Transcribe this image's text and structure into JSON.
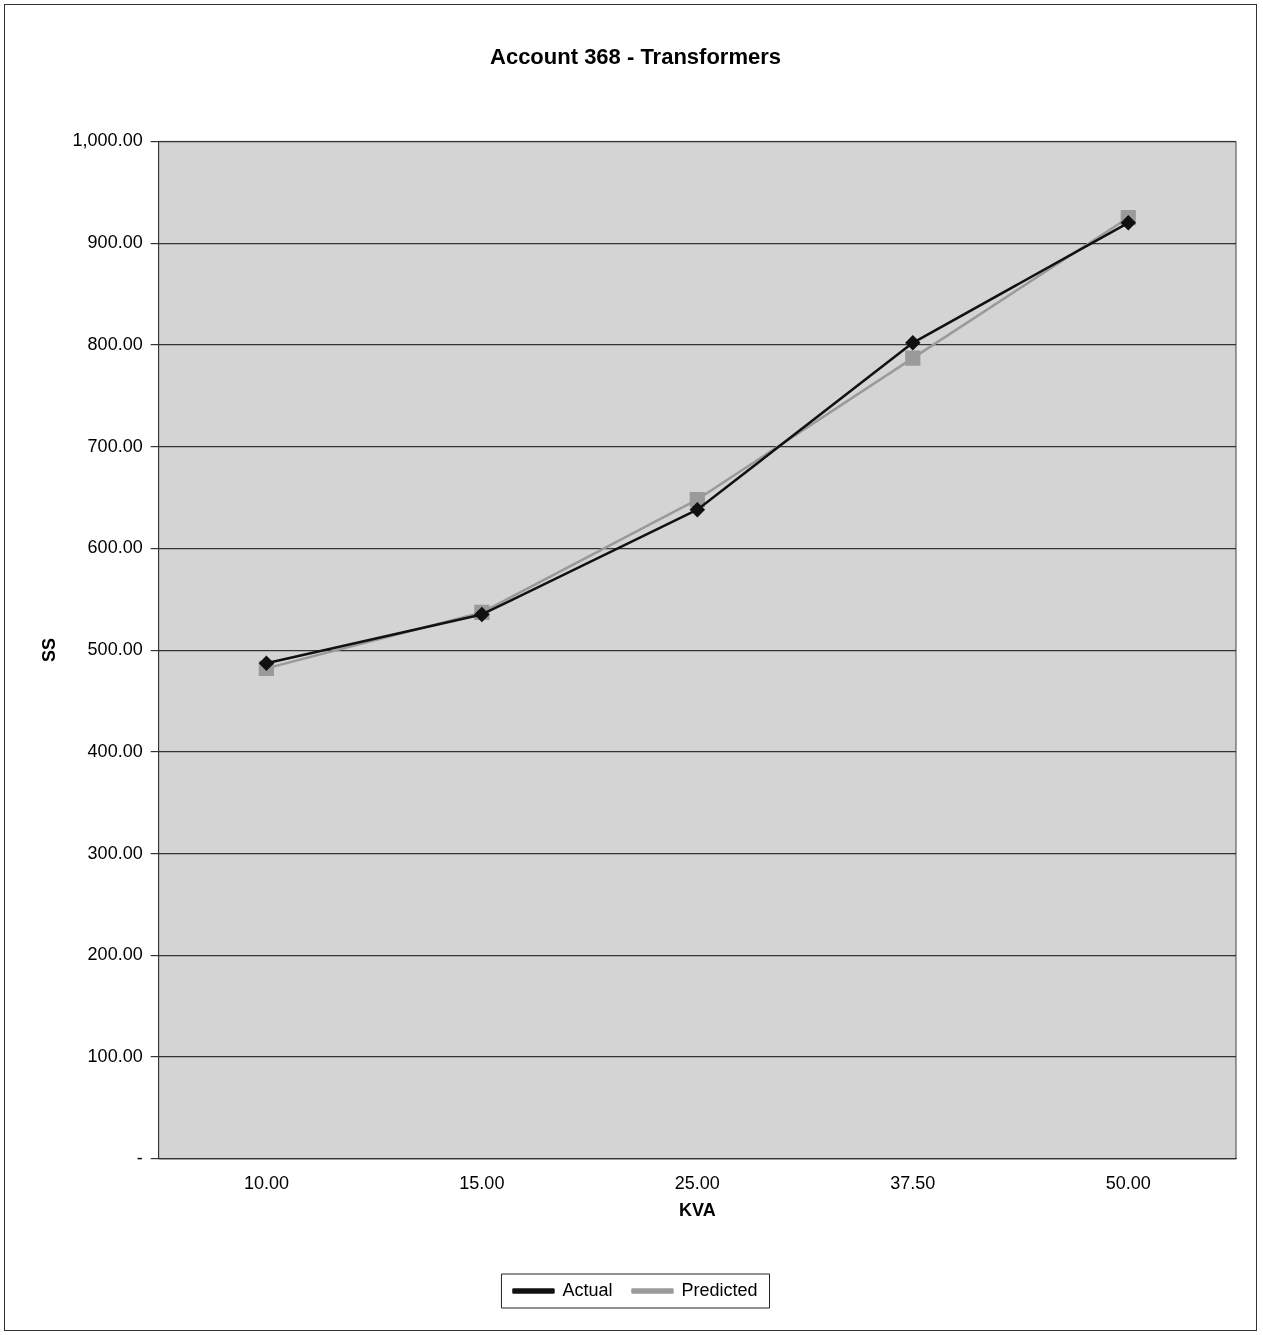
{
  "chart_data": {
    "type": "line",
    "title": "Account 368 - Transformers",
    "xlabel": "KVA",
    "ylabel": "SS",
    "categories": [
      "10.00",
      "15.00",
      "25.00",
      "37.50",
      "50.00"
    ],
    "series": [
      {
        "name": "Actual",
        "color": "#111111",
        "marker": "diamond",
        "values": [
          487,
          535,
          638,
          802,
          920
        ]
      },
      {
        "name": "Predicted",
        "color": "#9a9a9a",
        "marker": "square",
        "values": [
          482,
          537,
          648,
          787,
          925
        ]
      }
    ],
    "ylim": [
      0,
      1000
    ],
    "yticks": [
      {
        "value": 0,
        "label": "-"
      },
      {
        "value": 100,
        "label": "100.00"
      },
      {
        "value": 200,
        "label": "200.00"
      },
      {
        "value": 300,
        "label": "300.00"
      },
      {
        "value": 400,
        "label": "400.00"
      },
      {
        "value": 500,
        "label": "500.00"
      },
      {
        "value": 600,
        "label": "600.00"
      },
      {
        "value": 700,
        "label": "700.00"
      },
      {
        "value": 800,
        "label": "800.00"
      },
      {
        "value": 900,
        "label": "900.00"
      },
      {
        "value": 1000,
        "label": "1,000.00"
      }
    ],
    "grid": "y",
    "legend": "bottom",
    "line_style": "solid"
  }
}
